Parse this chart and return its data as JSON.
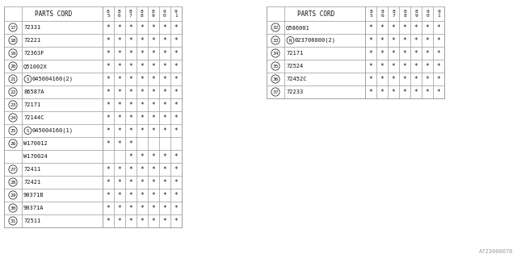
{
  "left_table": {
    "header_years": [
      "85",
      "86",
      "87",
      "88",
      "89",
      "90",
      "91"
    ],
    "rows": [
      {
        "num": "17",
        "part": "72331",
        "marks": [
          1,
          1,
          1,
          1,
          1,
          1,
          1
        ],
        "special": ""
      },
      {
        "num": "18",
        "part": "72221",
        "marks": [
          1,
          1,
          1,
          1,
          1,
          1,
          1
        ],
        "special": ""
      },
      {
        "num": "19",
        "part": "72363F",
        "marks": [
          1,
          1,
          1,
          1,
          1,
          1,
          1
        ],
        "special": ""
      },
      {
        "num": "20",
        "part": "Q51002X",
        "marks": [
          1,
          1,
          1,
          1,
          1,
          1,
          1
        ],
        "special": ""
      },
      {
        "num": "21",
        "part": "045004160(2)",
        "marks": [
          1,
          1,
          1,
          1,
          1,
          1,
          1
        ],
        "special": "S"
      },
      {
        "num": "22",
        "part": "86587A",
        "marks": [
          1,
          1,
          1,
          1,
          1,
          1,
          1
        ],
        "special": ""
      },
      {
        "num": "23",
        "part": "72171",
        "marks": [
          1,
          1,
          1,
          1,
          1,
          1,
          1
        ],
        "special": ""
      },
      {
        "num": "24",
        "part": "72144C",
        "marks": [
          1,
          1,
          1,
          1,
          1,
          1,
          1
        ],
        "special": ""
      },
      {
        "num": "25",
        "part": "045004160(1)",
        "marks": [
          1,
          1,
          1,
          1,
          1,
          1,
          1
        ],
        "special": "S"
      },
      {
        "num": "26",
        "part": "W170012",
        "marks": [
          1,
          1,
          1,
          0,
          0,
          0,
          0
        ],
        "special": "",
        "subpart": "W170024",
        "submarks": [
          0,
          0,
          1,
          1,
          1,
          1,
          1
        ]
      },
      {
        "num": "27",
        "part": "72411",
        "marks": [
          1,
          1,
          1,
          1,
          1,
          1,
          1
        ],
        "special": ""
      },
      {
        "num": "28",
        "part": "72421",
        "marks": [
          1,
          1,
          1,
          1,
          1,
          1,
          1
        ],
        "special": ""
      },
      {
        "num": "29",
        "part": "90371B",
        "marks": [
          1,
          1,
          1,
          1,
          1,
          1,
          1
        ],
        "special": ""
      },
      {
        "num": "30",
        "part": "90371A",
        "marks": [
          1,
          1,
          1,
          1,
          1,
          1,
          1
        ],
        "special": ""
      },
      {
        "num": "31",
        "part": "72511",
        "marks": [
          1,
          1,
          1,
          1,
          1,
          1,
          1
        ],
        "special": ""
      }
    ]
  },
  "right_table": {
    "header_years": [
      "85",
      "86",
      "87",
      "88",
      "89",
      "90",
      "91"
    ],
    "rows": [
      {
        "num": "32",
        "part": "Q586001",
        "marks": [
          1,
          1,
          1,
          1,
          1,
          1,
          1
        ],
        "special": ""
      },
      {
        "num": "33",
        "part": "023706000(2)",
        "marks": [
          1,
          1,
          1,
          1,
          1,
          1,
          1
        ],
        "special": "N"
      },
      {
        "num": "34",
        "part": "72171",
        "marks": [
          1,
          1,
          1,
          1,
          1,
          1,
          1
        ],
        "special": ""
      },
      {
        "num": "35",
        "part": "72524",
        "marks": [
          1,
          1,
          1,
          1,
          1,
          1,
          1
        ],
        "special": ""
      },
      {
        "num": "36",
        "part": "72452C",
        "marks": [
          1,
          1,
          1,
          1,
          1,
          1,
          1
        ],
        "special": ""
      },
      {
        "num": "37",
        "part": "72233",
        "marks": [
          1,
          1,
          1,
          1,
          1,
          1,
          1
        ],
        "special": ""
      }
    ]
  },
  "watermark": "A723000076",
  "bg_color": "#ffffff",
  "line_color": "#999999",
  "text_color": "#111111"
}
